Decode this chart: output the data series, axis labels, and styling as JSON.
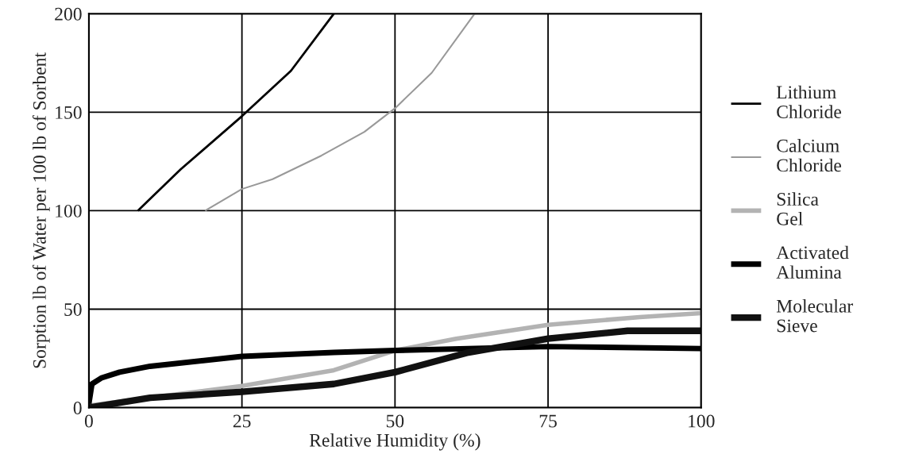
{
  "chart_data": {
    "type": "line",
    "xlabel": "Relative Humidity (%)",
    "ylabel": "Sorption lb of Water per 100 lb of Sorbent",
    "xlim": [
      0,
      100
    ],
    "ylim": [
      0,
      200
    ],
    "xticks": [
      0,
      25,
      50,
      75,
      100
    ],
    "yticks": [
      0,
      50,
      100,
      150,
      200
    ],
    "grid": true,
    "legend": "right",
    "marker": "none",
    "line_style": "solid",
    "series": [
      {
        "name": "Lithium\nChloride",
        "color": "#000000",
        "x": [
          8,
          15,
          25,
          33,
          40
        ],
        "values": [
          100,
          121,
          148,
          171,
          200
        ]
      },
      {
        "name": "Calcium\nChloride",
        "color": "#999999",
        "x": [
          19,
          25,
          30,
          38,
          45,
          50,
          56,
          63
        ],
        "values": [
          100,
          111,
          116,
          128,
          140,
          152,
          170,
          200
        ]
      },
      {
        "name": "Silica\nGel",
        "color": "#b3b3b3",
        "x": [
          0,
          10,
          25,
          40,
          50,
          60,
          75,
          90,
          100
        ],
        "values": [
          1,
          5,
          11,
          19,
          29,
          35,
          42,
          46,
          48
        ]
      },
      {
        "name": "Activated\nAlumina",
        "color": "#000000",
        "x": [
          0,
          0.5,
          2,
          5,
          10,
          25,
          40,
          50,
          75,
          100
        ],
        "values": [
          2,
          12,
          15,
          18,
          21,
          26,
          28,
          29,
          31,
          30
        ]
      },
      {
        "name": "Molecular\nSieve",
        "color": "#111111",
        "x": [
          0,
          10,
          25,
          40,
          50,
          62,
          75,
          88,
          100
        ],
        "values": [
          0,
          5,
          8,
          12,
          18,
          28,
          35,
          39,
          39
        ]
      }
    ]
  }
}
